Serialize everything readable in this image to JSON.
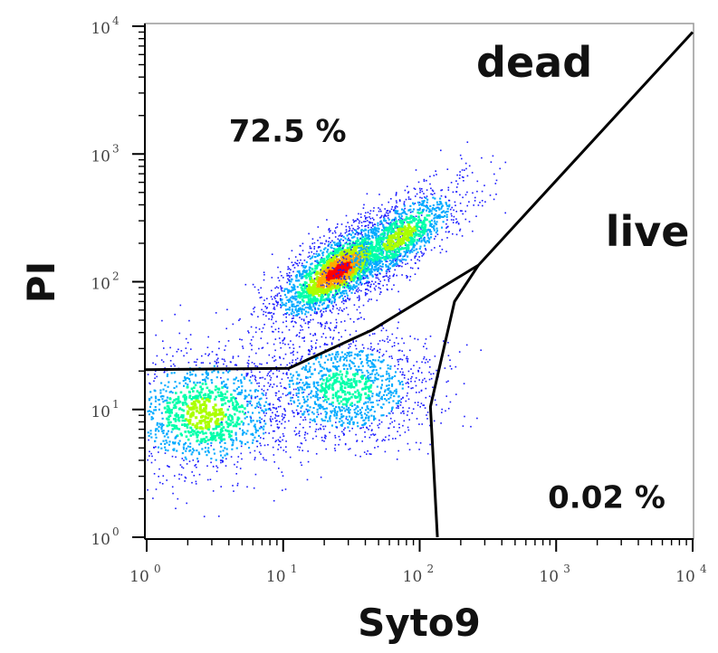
{
  "chart_data": {
    "type": "scatter",
    "title": "",
    "xlabel": "Syto9",
    "ylabel": "PI",
    "x_scale": "log",
    "y_scale": "log",
    "xlim": [
      1,
      10000
    ],
    "ylim": [
      1,
      10000
    ],
    "x_ticks": [
      {
        "value": 1,
        "base": "10",
        "exp": "0"
      },
      {
        "value": 10,
        "base": "10",
        "exp": "1"
      },
      {
        "value": 100,
        "base": "10",
        "exp": "2"
      },
      {
        "value": 1000,
        "base": "10",
        "exp": "3"
      },
      {
        "value": 10000,
        "base": "10",
        "exp": "4"
      }
    ],
    "y_ticks": [
      {
        "value": 1,
        "base": "10",
        "exp": "0"
      },
      {
        "value": 10,
        "base": "10",
        "exp": "1"
      },
      {
        "value": 100,
        "base": "10",
        "exp": "2"
      },
      {
        "value": 1000,
        "base": "10",
        "exp": "3"
      },
      {
        "value": 10000,
        "base": "10",
        "exp": "4"
      }
    ],
    "grid": false,
    "density_colormap": [
      "#1a1aff",
      "#00aaff",
      "#00ffaa",
      "#aaff00",
      "#ffaa00",
      "#ff0000"
    ],
    "clusters": [
      {
        "center": [
          2.6,
          9.5
        ],
        "spread": [
          0.22,
          0.17
        ],
        "weight": 0.55,
        "peak_level": 3
      },
      {
        "center": [
          28,
          15
        ],
        "spread": [
          0.22,
          0.16
        ],
        "weight": 0.6,
        "peak_level": 2
      },
      {
        "center": [
          25,
          125
        ],
        "spread": [
          0.17,
          0.1
        ],
        "weight": 1.0,
        "peak_level": 5
      },
      {
        "center": [
          70,
          230
        ],
        "spread": [
          0.17,
          0.1
        ],
        "weight": 0.45,
        "peak_level": 3
      }
    ],
    "gates": [
      {
        "name": "dead",
        "line_color": "#000000",
        "points": [
          [
            0.97,
            20.5
          ],
          [
            11,
            21
          ],
          [
            45,
            42
          ],
          [
            270,
            135
          ],
          [
            10000,
            9000
          ]
        ]
      },
      {
        "name": "live",
        "line_color": "#000000",
        "points": [
          [
            270,
            135
          ],
          [
            180,
            70
          ],
          [
            120,
            10.5
          ],
          [
            135,
            1
          ]
        ]
      }
    ],
    "annotations": [
      {
        "text": "dead",
        "x": 260,
        "y": 4000,
        "size": 46
      },
      {
        "text": "72.5 %",
        "x": 4,
        "y": 1250,
        "size": 34
      },
      {
        "text": "live",
        "x": 2300,
        "y": 190,
        "size": 46
      },
      {
        "text": "0.02 %",
        "x": 870,
        "y": 1.7,
        "size": 34
      }
    ]
  }
}
